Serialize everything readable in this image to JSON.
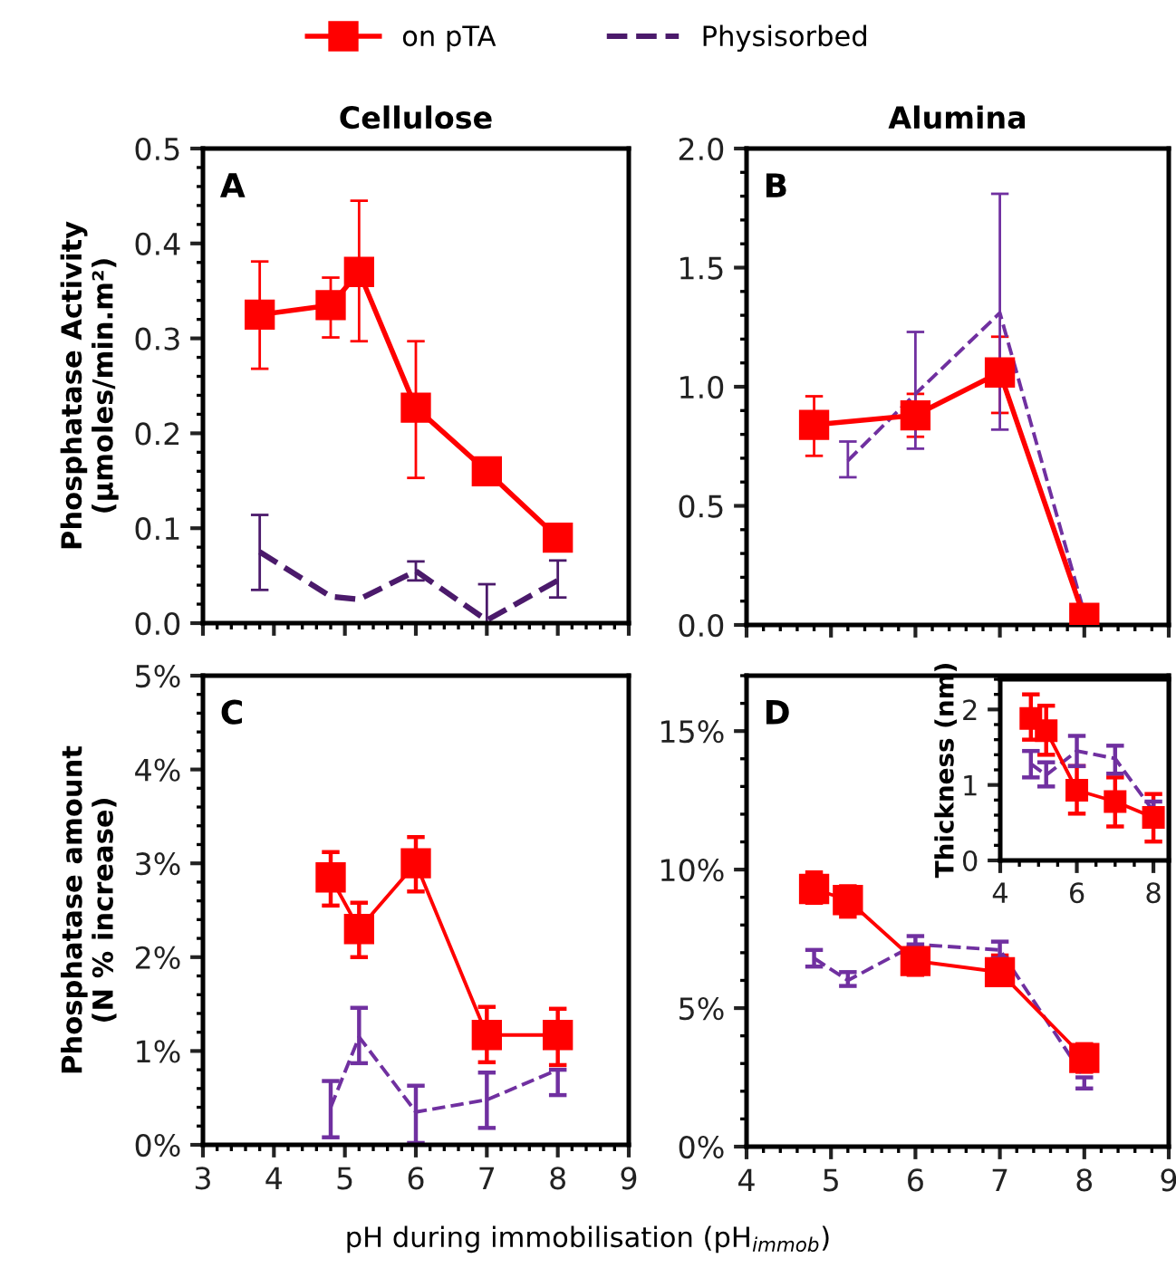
{
  "chart_data": [
    {
      "type": "line",
      "title": "Cellulose",
      "ylabel": "Phosphatase Activity\n(µmoles/min.m²)",
      "annotations": [
        "A"
      ],
      "legend": "top",
      "tick_labels": "y",
      "xlim": [
        3,
        9
      ],
      "xticks": [
        3,
        4,
        5,
        6,
        7,
        8,
        9
      ],
      "ylim": [
        0,
        0.5
      ],
      "yticks": [
        {
          "value": 0,
          "label": "0.0"
        },
        0.1,
        0.2,
        0.3,
        0.4,
        0.5
      ],
      "series": [
        {
          "name": "on pTA",
          "color": "#ff0000",
          "marker": "square",
          "line_style": "solid",
          "x": [
            3.8,
            4.8,
            5.2,
            6,
            7,
            8
          ],
          "values": [
            0.325,
            0.335,
            0.37,
            0.227,
            0.16,
            0.09
          ],
          "errors": [
            [
              0.268,
              0.381
            ],
            [
              0.301,
              0.364
            ],
            [
              0.297,
              0.445
            ],
            [
              0.153,
              0.297
            ],
            null,
            null
          ]
        },
        {
          "name": "Physisorbed",
          "color": "#4b1a6b",
          "marker": "none",
          "line_style": "dashed",
          "x": [
            3.8,
            4.8,
            5.2,
            6,
            7,
            8
          ],
          "values": [
            0.075,
            0.028,
            0.025,
            0.055,
            0.003,
            0.045
          ],
          "errors": [
            [
              0.035,
              0.114
            ],
            null,
            null,
            [
              0.045,
              0.065
            ],
            [
              0,
              0.041
            ],
            [
              0.027,
              0.066
            ]
          ]
        }
      ]
    },
    {
      "type": "line",
      "title": "Alumina",
      "annotations": [
        "B"
      ],
      "tick_labels": "y",
      "xlim": [
        4,
        9
      ],
      "xticks": [
        4,
        5,
        6,
        7,
        8,
        9
      ],
      "ylim": [
        0,
        2
      ],
      "yticks": [
        {
          "value": 0,
          "label": "0.0"
        },
        0.5,
        {
          "value": 1,
          "label": "1.0"
        },
        1.5,
        {
          "value": 2,
          "label": "2.0"
        }
      ],
      "series": [
        {
          "color": "#ff0000",
          "marker": "square",
          "line_style": "solid",
          "x": [
            4.8,
            6,
            7,
            8
          ],
          "values": [
            0.84,
            0.88,
            1.06,
            0.03
          ],
          "errors": [
            [
              0.71,
              0.96
            ],
            [
              0.79,
              0.97
            ],
            [
              0.89,
              1.21
            ],
            null
          ]
        },
        {
          "color": "#7030a0",
          "marker": "none",
          "line_style": "dashed",
          "x": [
            5.2,
            6,
            7,
            8
          ],
          "values": [
            0.69,
            0.97,
            1.31,
            0.05
          ],
          "errors": [
            [
              0.62,
              0.77
            ],
            [
              0.74,
              1.23
            ],
            [
              0.82,
              1.81
            ],
            null
          ]
        }
      ]
    },
    {
      "type": "line",
      "ylabel": "Phosphatase amount\n(N % increase)",
      "xlabel": "pH during immobilisation (pH$_{immob}$)",
      "annotations": [
        "C"
      ],
      "xlim": [
        3,
        9
      ],
      "xticks": [
        3,
        4,
        5,
        6,
        7,
        8,
        9
      ],
      "ylim": [
        0,
        5
      ],
      "yticks": [
        {
          "value": 0,
          "label": "0%"
        },
        {
          "value": 1,
          "label": "1%"
        },
        {
          "value": 2,
          "label": "2%"
        },
        {
          "value": 3,
          "label": "3%"
        },
        {
          "value": 4,
          "label": "4%"
        },
        {
          "value": 5,
          "label": "5%"
        }
      ],
      "series": [
        {
          "color": "#ff0000",
          "marker": "square",
          "line_style": "solid",
          "x": [
            4.8,
            5.2,
            6,
            7,
            8
          ],
          "values": [
            2.85,
            2.3,
            3.0,
            1.17,
            1.17
          ],
          "errors": [
            [
              2.55,
              3.12
            ],
            [
              2.0,
              2.58
            ],
            [
              2.7,
              3.28
            ],
            [
              0.88,
              1.47
            ],
            [
              0.85,
              1.45
            ]
          ]
        },
        {
          "color": "#7030a0",
          "marker": "none",
          "line_style": "dashed",
          "x": [
            4.8,
            5.2,
            6,
            7,
            8
          ],
          "values": [
            0.4,
            1.15,
            0.35,
            0.48,
            0.8
          ],
          "errors": [
            [
              0.08,
              0.68
            ],
            [
              0.87,
              1.46
            ],
            [
              0.02,
              0.63
            ],
            [
              0.18,
              0.77
            ],
            [
              0.53,
              0.8
            ]
          ]
        }
      ]
    },
    {
      "type": "line",
      "annotations": [
        "D"
      ],
      "xlim": [
        4,
        9
      ],
      "xticks": [
        4,
        5,
        6,
        7,
        8,
        9
      ],
      "ylim": [
        0,
        17
      ],
      "yticks": [
        {
          "value": 0,
          "label": "0%"
        },
        {
          "value": 5,
          "label": "5%"
        },
        {
          "value": 10,
          "label": "10%"
        },
        {
          "value": 15,
          "label": "15%"
        }
      ],
      "series": [
        {
          "color": "#ff0000",
          "marker": "square",
          "line_style": "solid",
          "x": [
            4.8,
            5.2,
            6,
            7,
            8
          ],
          "values": [
            9.3,
            8.9,
            6.7,
            6.3,
            3.2
          ],
          "errors": [
            [
              8.8,
              9.9
            ],
            [
              8.3,
              9.4
            ],
            [
              6.2,
              7.2
            ],
            [
              5.9,
              6.9
            ],
            [
              2.7,
              3.7
            ]
          ]
        },
        {
          "color": "#7030a0",
          "marker": "none",
          "line_style": "dashed",
          "x": [
            4.8,
            5.2,
            6,
            7,
            8
          ],
          "values": [
            6.8,
            6.0,
            7.3,
            7.1,
            2.5
          ],
          "errors": [
            [
              6.5,
              7.1
            ],
            [
              5.8,
              6.3
            ],
            [
              7.3,
              7.6
            ],
            [
              6.8,
              7.4
            ],
            [
              2.1,
              2.5
            ]
          ]
        }
      ]
    },
    {
      "type": "line",
      "ylabel": "Thickness (nm)",
      "xlim": [
        4,
        8.4
      ],
      "xticks": [
        4,
        6,
        8
      ],
      "ylim": [
        0,
        2.4
      ],
      "yticks": [
        0,
        1,
        2
      ],
      "series": [
        {
          "color": "#ff0000",
          "marker": "square",
          "line_style": "solid",
          "x": [
            4.8,
            5.2,
            6,
            7,
            8
          ],
          "values": [
            1.88,
            1.72,
            0.93,
            0.78,
            0.57
          ],
          "errors": [
            [
              1.6,
              2.2
            ],
            [
              1.4,
              2.05
            ],
            [
              0.62,
              1.25
            ],
            [
              0.45,
              1.1
            ],
            [
              0.25,
              0.88
            ]
          ]
        },
        {
          "color": "#7030a0",
          "marker": "none",
          "line_style": "dashed",
          "x": [
            4.8,
            5.2,
            6,
            7,
            8
          ],
          "values": [
            1.28,
            1.13,
            1.45,
            1.35,
            0.65
          ],
          "errors": [
            [
              1.1,
              1.45
            ],
            [
              0.98,
              1.3
            ],
            [
              1.25,
              1.65
            ],
            [
              1.15,
              1.52
            ],
            [
              0.65,
              0.78
            ]
          ]
        }
      ]
    }
  ]
}
